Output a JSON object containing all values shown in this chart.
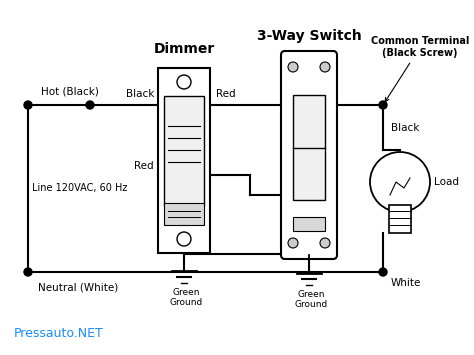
{
  "background_color": "#ffffff",
  "line_color": "#000000",
  "accent_color": "#1a8cff",
  "dimmer_label": "Dimmer",
  "switch_label": "3-Way Switch",
  "common_terminal_label": "Common Terminal\n(Black Screw)",
  "hot_label": "Hot (Black)",
  "neutral_label": "Neutral (White)",
  "line_label": "Line 120VAC, 60 Hz",
  "load_label": "Load",
  "black_label": "Black",
  "red_label": "Red",
  "white_label": "White",
  "green_ground_label": "Green\nGround",
  "watermark": "Pressauto.NET",
  "fig_width": 4.74,
  "fig_height": 3.55,
  "dpi": 100
}
